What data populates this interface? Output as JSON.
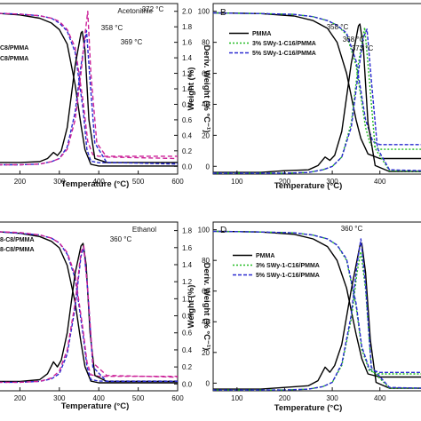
{
  "chart_data": [
    {
      "type": "line",
      "panel": "A",
      "panel_letter": "",
      "solvent_label": "Acetonitrile",
      "xlabel": "Temperature (°C)",
      "ylabel_left": "",
      "ylabel_right": "Deriv. Weight (% °C⁻¹)",
      "xlim": [
        145,
        600
      ],
      "x_ticks": [
        200,
        300,
        400,
        500,
        600
      ],
      "ylim_left": [
        0,
        105
      ],
      "y_ticks_left": [],
      "ylim_right": [
        -0.1,
        2.1
      ],
      "y_ticks_right": [
        0.0,
        0.2,
        0.4,
        0.6,
        0.8,
        1.0,
        1.2,
        1.4,
        1.6,
        1.8,
        2.0
      ],
      "legend_entries": [
        "C8/PMMA",
        "C8/PMMA"
      ],
      "annotations": [
        "372 °C",
        "358 °C",
        "369 °C"
      ],
      "series": [
        {
          "role": "weight",
          "color": "#000000",
          "dash": "",
          "x": [
            145,
            200,
            250,
            280,
            300,
            320,
            340,
            355,
            365,
            380,
            400,
            600
          ],
          "y": [
            99,
            98,
            96,
            93,
            89,
            80,
            55,
            30,
            15,
            6,
            5,
            5
          ]
        },
        {
          "role": "weight",
          "color": "#2a2ad0",
          "dash": "4,2",
          "x": [
            145,
            200,
            250,
            280,
            300,
            320,
            340,
            360,
            370,
            380,
            400,
            600
          ],
          "y": [
            99,
            98.5,
            97.5,
            96,
            93,
            88,
            75,
            40,
            15,
            8,
            7,
            7
          ]
        },
        {
          "role": "weight",
          "color": "#cc2299",
          "dash": "5,3",
          "x": [
            145,
            200,
            250,
            280,
            300,
            320,
            340,
            360,
            372,
            385,
            400,
            600
          ],
          "y": [
            99,
            98.5,
            97.5,
            96,
            94,
            89,
            78,
            45,
            20,
            12,
            11,
            11
          ]
        },
        {
          "role": "deriv",
          "color": "#000000",
          "dash": "",
          "x": [
            145,
            200,
            250,
            270,
            285,
            295,
            305,
            320,
            340,
            355,
            358,
            365,
            375,
            390,
            420,
            600
          ],
          "y": [
            0.05,
            0.05,
            0.06,
            0.1,
            0.18,
            0.14,
            0.2,
            0.5,
            1.3,
            1.72,
            1.74,
            1.5,
            0.6,
            0.1,
            0.05,
            0.05
          ]
        },
        {
          "role": "deriv",
          "color": "#2a2ad0",
          "dash": "4,2",
          "x": [
            145,
            200,
            250,
            280,
            300,
            320,
            340,
            355,
            369,
            378,
            390,
            420,
            600
          ],
          "y": [
            0.02,
            0.02,
            0.03,
            0.06,
            0.1,
            0.25,
            0.7,
            1.3,
            1.75,
            1.1,
            0.3,
            0.05,
            0.03
          ]
        },
        {
          "role": "deriv",
          "color": "#cc2299",
          "dash": "5,3",
          "x": [
            145,
            200,
            250,
            280,
            300,
            320,
            340,
            355,
            365,
            372,
            380,
            395,
            420,
            600
          ],
          "y": [
            0.02,
            0.02,
            0.03,
            0.06,
            0.1,
            0.22,
            0.6,
            1.2,
            1.7,
            2.0,
            1.2,
            0.3,
            0.12,
            0.1
          ]
        }
      ]
    },
    {
      "type": "line",
      "panel": "B",
      "panel_letter": "B",
      "solvent_label": "",
      "xlabel": "Temperature (°C)",
      "ylabel_left": "Weight (%)",
      "ylabel_right": "",
      "xlim": [
        50,
        490
      ],
      "x_ticks": [
        100,
        200,
        300,
        400
      ],
      "ylim_left": [
        -5,
        105
      ],
      "y_ticks_left": [
        0,
        20,
        40,
        60,
        80,
        100
      ],
      "ylim_right": [
        0,
        2
      ],
      "y_ticks_right": [],
      "legend_entries": [
        "PMMA",
        "3% SWy-1-C16/PMMA",
        "5% SWy-1-C16/PMMA"
      ],
      "annotations": [
        "358 °C",
        "368 °C",
        "373 °C"
      ],
      "series": [
        {
          "role": "weight",
          "color": "#000000",
          "dash": "",
          "x": [
            50,
            150,
            220,
            260,
            290,
            310,
            330,
            350,
            360,
            375,
            400,
            490
          ],
          "y": [
            99,
            98.5,
            97,
            94,
            89,
            80,
            60,
            30,
            18,
            8,
            5,
            5
          ]
        },
        {
          "role": "weight",
          "color": "#22bb22",
          "dash": "2,2",
          "x": [
            50,
            150,
            220,
            260,
            290,
            310,
            330,
            350,
            370,
            380,
            400,
            490
          ],
          "y": [
            99,
            98.5,
            98,
            96.5,
            94,
            91,
            85,
            65,
            25,
            14,
            11,
            11
          ]
        },
        {
          "role": "weight",
          "color": "#2a2ad0",
          "dash": "4,2",
          "x": [
            50,
            150,
            220,
            260,
            290,
            310,
            330,
            350,
            370,
            385,
            400,
            490
          ],
          "y": [
            99,
            98.5,
            98,
            96.5,
            94,
            91,
            86,
            68,
            30,
            16,
            14,
            14
          ]
        },
        {
          "role": "deriv",
          "color": "#000000",
          "dash": "",
          "x": [
            50,
            150,
            200,
            250,
            270,
            285,
            295,
            305,
            320,
            340,
            355,
            358,
            365,
            375,
            390,
            420,
            490
          ],
          "y": [
            0.02,
            0.02,
            0.04,
            0.05,
            0.1,
            0.2,
            0.16,
            0.22,
            0.5,
            1.3,
            1.74,
            1.76,
            1.5,
            0.6,
            0.1,
            0.03,
            0.03
          ]
        },
        {
          "role": "deriv",
          "color": "#22bb22",
          "dash": "2,2",
          "x": [
            50,
            200,
            250,
            280,
            300,
            320,
            340,
            355,
            368,
            378,
            390,
            420,
            490
          ],
          "y": [
            0.01,
            0.01,
            0.02,
            0.05,
            0.09,
            0.2,
            0.6,
            1.3,
            1.72,
            1.1,
            0.3,
            0.04,
            0.03
          ]
        },
        {
          "role": "deriv",
          "color": "#2a2ad0",
          "dash": "4,2",
          "x": [
            50,
            200,
            250,
            280,
            300,
            320,
            340,
            355,
            365,
            373,
            382,
            395,
            420,
            490
          ],
          "y": [
            0.01,
            0.01,
            0.02,
            0.05,
            0.09,
            0.2,
            0.55,
            1.2,
            1.6,
            1.7,
            1.1,
            0.3,
            0.05,
            0.04
          ]
        }
      ]
    },
    {
      "type": "line",
      "panel": "C",
      "panel_letter": "",
      "solvent_label": "Ethanol",
      "xlabel": "Temperature (°C)",
      "ylabel_left": "",
      "ylabel_right": "Deriv. Weight (% °C⁻¹)",
      "xlim": [
        145,
        600
      ],
      "x_ticks": [
        200,
        300,
        400,
        500,
        600
      ],
      "ylim_left": [
        0,
        105
      ],
      "y_ticks_left": [],
      "ylim_right": [
        -0.08,
        1.9
      ],
      "y_ticks_right": [
        0.0,
        0.2,
        0.4,
        0.6,
        0.8,
        1.0,
        1.2,
        1.4,
        1.6,
        1.8
      ],
      "legend_entries": [
        "8-C8/PMMA",
        "8-C8/PMMA"
      ],
      "annotations": [
        "360 °C"
      ],
      "series": [
        {
          "role": "weight",
          "color": "#000000",
          "dash": "",
          "x": [
            145,
            200,
            250,
            280,
            300,
            320,
            340,
            355,
            365,
            380,
            400,
            600
          ],
          "y": [
            99,
            98,
            96,
            93,
            89,
            78,
            55,
            30,
            15,
            6,
            5,
            5
          ]
        },
        {
          "role": "weight",
          "color": "#2a2ad0",
          "dash": "4,2",
          "x": [
            145,
            200,
            250,
            280,
            300,
            320,
            340,
            360,
            370,
            380,
            400,
            600
          ],
          "y": [
            99,
            98,
            97,
            95,
            92,
            85,
            70,
            35,
            15,
            7,
            6,
            6
          ]
        },
        {
          "role": "weight",
          "color": "#cc2299",
          "dash": "5,3",
          "x": [
            145,
            200,
            250,
            280,
            300,
            320,
            340,
            360,
            370,
            380,
            400,
            600
          ],
          "y": [
            99,
            98.5,
            97,
            95,
            92,
            86,
            72,
            38,
            18,
            10,
            9,
            9
          ]
        },
        {
          "role": "deriv",
          "color": "#000000",
          "dash": "",
          "x": [
            145,
            200,
            250,
            270,
            285,
            295,
            305,
            320,
            340,
            355,
            360,
            368,
            378,
            390,
            420,
            600
          ],
          "y": [
            0.03,
            0.03,
            0.05,
            0.12,
            0.26,
            0.2,
            0.28,
            0.6,
            1.3,
            1.62,
            1.65,
            1.4,
            0.6,
            0.1,
            0.03,
            0.03
          ]
        },
        {
          "role": "deriv",
          "color": "#2a2ad0",
          "dash": "4,2",
          "x": [
            145,
            200,
            250,
            280,
            300,
            320,
            340,
            355,
            362,
            372,
            385,
            420,
            600
          ],
          "y": [
            0.02,
            0.02,
            0.03,
            0.06,
            0.12,
            0.35,
            0.9,
            1.5,
            1.6,
            1.1,
            0.2,
            0.03,
            0.03
          ]
        },
        {
          "role": "deriv",
          "color": "#cc2299",
          "dash": "5,3",
          "x": [
            145,
            200,
            250,
            280,
            300,
            320,
            340,
            355,
            362,
            372,
            385,
            420,
            600
          ],
          "y": [
            0.02,
            0.02,
            0.03,
            0.07,
            0.15,
            0.4,
            0.95,
            1.55,
            1.62,
            1.1,
            0.25,
            0.1,
            0.08
          ]
        }
      ]
    },
    {
      "type": "line",
      "panel": "D",
      "panel_letter": "D",
      "solvent_label": "",
      "xlabel": "Temperature (°C)",
      "ylabel_left": "Weight (%)",
      "ylabel_right": "",
      "xlim": [
        50,
        490
      ],
      "x_ticks": [
        100,
        200,
        300,
        400
      ],
      "ylim_left": [
        -5,
        105
      ],
      "y_ticks_left": [
        0,
        20,
        40,
        60,
        80,
        100
      ],
      "ylim_right": [
        0,
        2
      ],
      "y_ticks_right": [],
      "legend_entries": [
        "PMMA",
        "3% SWy-1-C16/PMMA",
        "5% SWy-1-C16/PMMA"
      ],
      "annotations": [
        "360 °C"
      ],
      "series": [
        {
          "role": "weight",
          "color": "#000000",
          "dash": "",
          "x": [
            50,
            150,
            220,
            260,
            290,
            310,
            330,
            350,
            362,
            375,
            400,
            490
          ],
          "y": [
            99,
            98.5,
            97,
            94,
            89,
            80,
            62,
            32,
            16,
            6,
            4,
            4
          ]
        },
        {
          "role": "weight",
          "color": "#22bb22",
          "dash": "2,2",
          "x": [
            50,
            150,
            220,
            260,
            290,
            310,
            330,
            350,
            362,
            378,
            400,
            490
          ],
          "y": [
            99,
            98.5,
            98,
            96.5,
            94,
            90,
            80,
            50,
            22,
            8,
            6,
            6
          ]
        },
        {
          "role": "weight",
          "color": "#2a2ad0",
          "dash": "4,2",
          "x": [
            50,
            150,
            220,
            260,
            290,
            310,
            330,
            350,
            362,
            378,
            400,
            490
          ],
          "y": [
            99,
            98.5,
            98,
            96.5,
            94,
            90,
            81,
            52,
            24,
            9,
            7,
            7
          ]
        },
        {
          "role": "deriv",
          "color": "#000000",
          "dash": "",
          "x": [
            50,
            150,
            200,
            250,
            270,
            285,
            295,
            305,
            320,
            340,
            358,
            362,
            370,
            380,
            392,
            420,
            490
          ],
          "y": [
            0.02,
            0.02,
            0.04,
            0.06,
            0.12,
            0.28,
            0.22,
            0.3,
            0.55,
            1.2,
            1.72,
            1.75,
            1.4,
            0.6,
            0.1,
            0.03,
            0.03
          ]
        },
        {
          "role": "deriv",
          "color": "#22bb22",
          "dash": "2,2",
          "x": [
            50,
            200,
            250,
            280,
            300,
            320,
            340,
            352,
            360,
            370,
            382,
            420,
            490
          ],
          "y": [
            0.01,
            0.01,
            0.02,
            0.05,
            0.1,
            0.3,
            0.85,
            1.4,
            1.65,
            1.2,
            0.25,
            0.03,
            0.03
          ]
        },
        {
          "role": "deriv",
          "color": "#2a2ad0",
          "dash": "4,2",
          "x": [
            50,
            200,
            250,
            280,
            300,
            320,
            340,
            352,
            360,
            370,
            382,
            420,
            490
          ],
          "y": [
            0.01,
            0.01,
            0.02,
            0.05,
            0.1,
            0.32,
            0.9,
            1.5,
            1.8,
            1.25,
            0.28,
            0.04,
            0.03
          ]
        }
      ]
    }
  ]
}
